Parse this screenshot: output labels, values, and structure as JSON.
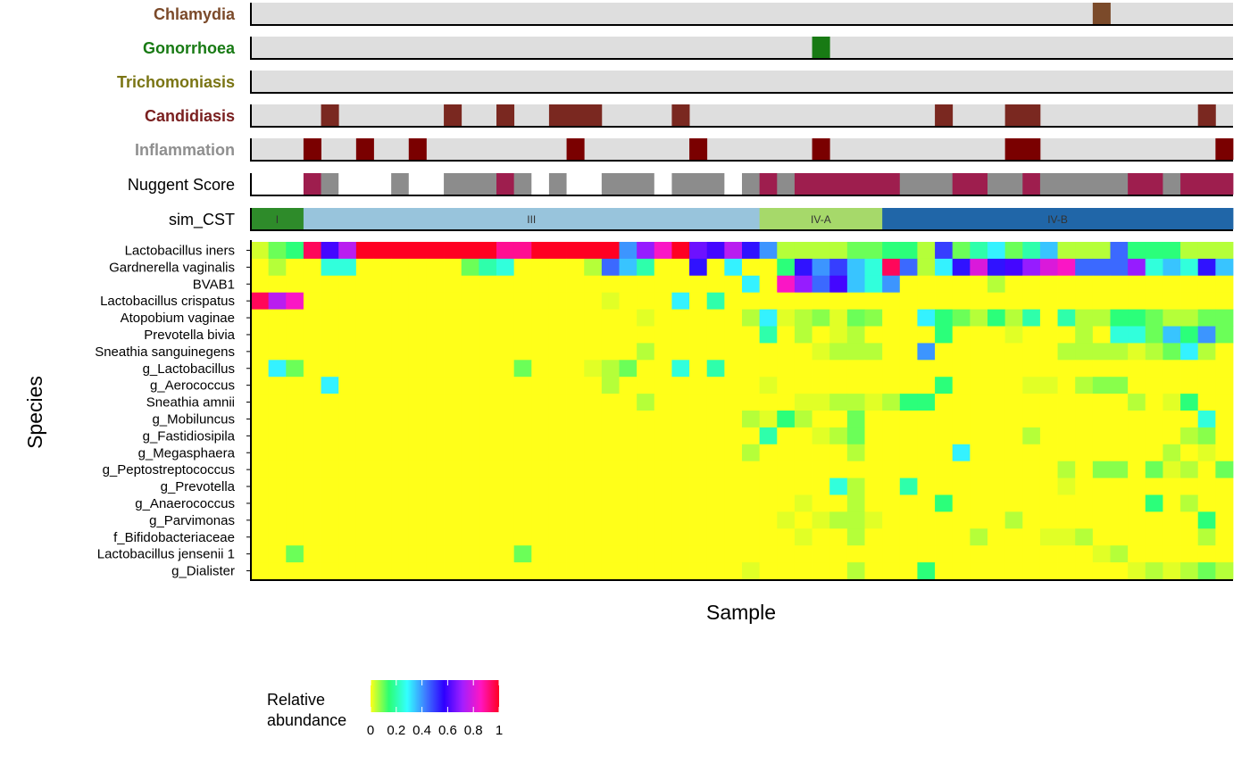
{
  "chart_data": {
    "type": "heatmap",
    "xlabel": "Sample",
    "ylabel": "Species",
    "n_samples": 56,
    "indicator_tracks": [
      {
        "name": "Chlamydia",
        "label_color": "#7b4a2a",
        "on_color": "#7b4a2a",
        "positive": [
          48
        ]
      },
      {
        "name": "Gonorrhoea",
        "label_color": "#187a14",
        "on_color": "#187a14",
        "positive": [
          32
        ]
      },
      {
        "name": "Trichomoniasis",
        "label_color": "#7a7514",
        "on_color": "#7a7514",
        "positive": []
      },
      {
        "name": "Candidiasis",
        "label_color": "#7a2020",
        "on_color": "#7a2820",
        "positive": [
          4,
          11,
          14,
          17,
          18,
          19,
          24,
          39,
          43,
          44,
          54
        ]
      },
      {
        "name": "Inflammation",
        "label_color": "#8f8f8f",
        "on_color": "#7a0000",
        "positive": [
          3,
          6,
          9,
          18,
          25,
          32,
          43,
          44,
          55
        ]
      }
    ],
    "nugent": {
      "name": "Nuggent Score",
      "categories": [
        "low",
        "intermediate",
        "high"
      ],
      "colors": {
        "low": "#ffffff",
        "intermediate": "#8c8c8c",
        "high": "#9e1e4e"
      },
      "values": [
        "low",
        "low",
        "low",
        "high",
        "intermediate",
        "low",
        "low",
        "low",
        "intermediate",
        "low",
        "low",
        "intermediate",
        "intermediate",
        "intermediate",
        "high",
        "intermediate",
        "low",
        "intermediate",
        "low",
        "low",
        "intermediate",
        "intermediate",
        "intermediate",
        "low",
        "intermediate",
        "intermediate",
        "intermediate",
        "low",
        "intermediate",
        "high",
        "intermediate",
        "high",
        "high",
        "high",
        "high",
        "high",
        "high",
        "intermediate",
        "intermediate",
        "intermediate",
        "high",
        "high",
        "intermediate",
        "intermediate",
        "high",
        "intermediate",
        "intermediate",
        "intermediate",
        "intermediate",
        "intermediate",
        "high",
        "high",
        "intermediate",
        "high",
        "high",
        "high"
      ]
    },
    "cst": {
      "name": "sim_CST",
      "segments": [
        {
          "label": "I",
          "start": 0,
          "end": 3,
          "color": "#2e8b2a"
        },
        {
          "label": "III",
          "start": 3,
          "end": 29,
          "color": "#98c4dc"
        },
        {
          "label": "IV-A",
          "start": 29,
          "end": 36,
          "color": "#a6d96a"
        },
        {
          "label": "IV-B",
          "start": 36,
          "end": 56,
          "color": "#2066a8"
        }
      ]
    },
    "species": [
      "Lactobacillus iners",
      "Gardnerella vaginalis",
      "BVAB1",
      "Lactobacillus crispatus",
      "Atopobium vaginae",
      "Prevotella bivia",
      "Sneathia sanguinegens",
      "g_Lactobacillus",
      "g_Aerococcus",
      "Sneathia amnii",
      "g_Mobiluncus",
      "g_Fastidiosipila",
      "g_Megasphaera",
      "g_Peptostreptococcus",
      "g_Prevotella",
      "g_Anaerococcus",
      "g_Parvimonas",
      "f_Bifidobacteriaceae",
      "Lactobacillus jensenii 1",
      "g_Dialister"
    ],
    "abundance": [
      [
        0.03,
        0.1,
        0.15,
        0.95,
        0.6,
        0.75,
        1,
        1,
        1,
        1,
        1,
        1,
        1,
        1,
        0.9,
        0.9,
        1,
        1,
        1,
        1,
        1,
        0.4,
        0.7,
        0.85,
        1,
        0.65,
        0.6,
        0.75,
        0.55,
        0.4,
        0.05,
        0.05,
        0.05,
        0.05,
        0.1,
        0.1,
        0.15,
        0.15,
        0.05,
        0.5,
        0.1,
        0.2,
        0.3,
        0.1,
        0.2,
        0.35,
        0.05,
        0.05,
        0.05,
        0.45,
        0.15,
        0.15,
        0.15,
        0.05,
        0.05,
        0.05
      ],
      [
        0,
        0.05,
        0,
        0,
        0.25,
        0.25,
        0,
        0,
        0,
        0,
        0,
        0,
        0.1,
        0.2,
        0.25,
        0,
        0,
        0,
        0,
        0.05,
        0.45,
        0.35,
        0.2,
        0,
        0,
        0.55,
        0,
        0.3,
        0,
        0,
        0.15,
        0.55,
        0.4,
        0.5,
        0.35,
        0.25,
        0.95,
        0.45,
        0.05,
        0.3,
        0.55,
        0.8,
        0.55,
        0.6,
        0.7,
        0.8,
        0.85,
        0.45,
        0.45,
        0.45,
        0.7,
        0.25,
        0.35,
        0.25,
        0.55,
        0.35
      ],
      [
        0,
        0,
        0,
        0,
        0,
        0,
        0,
        0,
        0,
        0,
        0,
        0,
        0,
        0,
        0,
        0,
        0,
        0,
        0,
        0,
        0,
        0,
        0,
        0,
        0,
        0,
        0,
        0,
        0.3,
        0,
        0.85,
        0.7,
        0.45,
        0.6,
        0.35,
        0.25,
        0.4,
        0,
        0,
        0,
        0,
        0,
        0.05,
        0,
        0,
        0,
        0,
        0,
        0,
        0,
        0,
        0,
        0,
        0,
        0,
        0
      ],
      [
        0.95,
        0.75,
        0.85,
        0,
        0,
        0,
        0,
        0,
        0,
        0,
        0,
        0,
        0,
        0,
        0,
        0,
        0,
        0,
        0,
        0,
        0.02,
        0,
        0,
        0,
        0.3,
        0,
        0.2,
        0,
        0,
        0,
        0,
        0,
        0,
        0,
        0,
        0,
        0,
        0,
        0,
        0,
        0,
        0,
        0,
        0,
        0,
        0,
        0,
        0,
        0,
        0,
        0,
        0,
        0,
        0,
        0,
        0
      ],
      [
        0,
        0,
        0,
        0,
        0,
        0,
        0,
        0,
        0,
        0,
        0,
        0,
        0,
        0,
        0,
        0,
        0,
        0,
        0,
        0,
        0,
        0,
        0.02,
        0,
        0,
        0,
        0,
        0,
        0.05,
        0.3,
        0.02,
        0.05,
        0.08,
        0.02,
        0.1,
        0.08,
        0,
        0,
        0.3,
        0.15,
        0.1,
        0.05,
        0.15,
        0.05,
        0.2,
        0,
        0.2,
        0.05,
        0.05,
        0.15,
        0.15,
        0.1,
        0.05,
        0.05,
        0.1,
        0.1
      ],
      [
        0,
        0,
        0,
        0,
        0,
        0,
        0,
        0,
        0,
        0,
        0,
        0,
        0,
        0,
        0,
        0,
        0,
        0,
        0,
        0,
        0,
        0,
        0,
        0,
        0,
        0,
        0,
        0,
        0,
        0.2,
        0,
        0.05,
        0,
        0.02,
        0.05,
        0,
        0,
        0,
        0,
        0.15,
        0,
        0,
        0,
        0.02,
        0,
        0,
        0,
        0.05,
        0,
        0.25,
        0.25,
        0.1,
        0.35,
        0.15,
        0.4,
        0.1
      ],
      [
        0,
        0,
        0,
        0,
        0,
        0,
        0,
        0,
        0,
        0,
        0,
        0,
        0,
        0,
        0,
        0,
        0,
        0,
        0,
        0,
        0,
        0,
        0.05,
        0,
        0,
        0,
        0,
        0,
        0,
        0,
        0,
        0,
        0.02,
        0.05,
        0.05,
        0.05,
        0,
        0,
        0.4,
        0,
        0,
        0,
        0,
        0,
        0,
        0,
        0.05,
        0.05,
        0.05,
        0.05,
        0.02,
        0.05,
        0.1,
        0.3,
        0.05,
        0
      ],
      [
        0,
        0.3,
        0.1,
        0,
        0,
        0,
        0,
        0,
        0,
        0,
        0,
        0,
        0,
        0,
        0,
        0.1,
        0,
        0,
        0,
        0.02,
        0.05,
        0.1,
        0,
        0,
        0.25,
        0,
        0.2,
        0,
        0,
        0,
        0,
        0,
        0,
        0,
        0,
        0,
        0,
        0,
        0,
        0,
        0,
        0,
        0,
        0,
        0,
        0,
        0,
        0,
        0,
        0,
        0,
        0,
        0,
        0,
        0,
        0
      ],
      [
        0,
        0,
        0,
        0,
        0.3,
        0,
        0,
        0,
        0,
        0,
        0,
        0,
        0,
        0,
        0,
        0,
        0,
        0,
        0,
        0,
        0.05,
        0,
        0,
        0,
        0,
        0,
        0,
        0,
        0,
        0.02,
        0,
        0,
        0,
        0,
        0,
        0,
        0,
        0,
        0,
        0.15,
        0,
        0,
        0,
        0,
        0.02,
        0.02,
        0,
        0.05,
        0.08,
        0.08,
        0,
        0,
        0,
        0,
        0,
        0
      ],
      [
        0,
        0,
        0,
        0,
        0,
        0,
        0,
        0,
        0,
        0,
        0,
        0,
        0,
        0,
        0,
        0,
        0,
        0,
        0,
        0,
        0,
        0,
        0.05,
        0,
        0,
        0,
        0,
        0,
        0,
        0,
        0,
        0.02,
        0.02,
        0.05,
        0.05,
        0.02,
        0.05,
        0.15,
        0.15,
        0,
        0,
        0,
        0,
        0,
        0,
        0,
        0,
        0,
        0,
        0,
        0.05,
        0,
        0.02,
        0.15,
        0,
        0
      ],
      [
        0,
        0,
        0,
        0,
        0,
        0,
        0,
        0,
        0,
        0,
        0,
        0,
        0,
        0,
        0,
        0,
        0,
        0,
        0,
        0,
        0,
        0,
        0,
        0,
        0,
        0,
        0,
        0,
        0.05,
        0.02,
        0.15,
        0.05,
        0,
        0,
        0.1,
        0,
        0,
        0,
        0,
        0,
        0,
        0,
        0,
        0,
        0,
        0,
        0,
        0,
        0,
        0,
        0,
        0,
        0,
        0,
        0.25,
        0
      ],
      [
        0,
        0,
        0,
        0,
        0,
        0,
        0,
        0,
        0,
        0,
        0,
        0,
        0,
        0,
        0,
        0,
        0,
        0,
        0,
        0,
        0,
        0,
        0,
        0,
        0,
        0,
        0,
        0,
        0,
        0.2,
        0,
        0,
        0.02,
        0.05,
        0.1,
        0,
        0,
        0,
        0,
        0,
        0,
        0,
        0,
        0,
        0.05,
        0,
        0,
        0,
        0,
        0,
        0,
        0,
        0,
        0.05,
        0.08,
        0
      ],
      [
        0,
        0,
        0,
        0,
        0,
        0,
        0,
        0,
        0,
        0,
        0,
        0,
        0,
        0,
        0,
        0,
        0,
        0,
        0,
        0,
        0,
        0,
        0,
        0,
        0,
        0,
        0,
        0,
        0.05,
        0,
        0,
        0,
        0,
        0,
        0.05,
        0,
        0,
        0,
        0,
        0,
        0.3,
        0,
        0,
        0,
        0,
        0,
        0,
        0,
        0,
        0,
        0,
        0,
        0.05,
        0,
        0.02,
        0
      ],
      [
        0,
        0,
        0,
        0,
        0,
        0,
        0,
        0,
        0,
        0,
        0,
        0,
        0,
        0,
        0,
        0,
        0,
        0,
        0,
        0,
        0,
        0,
        0,
        0,
        0,
        0,
        0,
        0,
        0,
        0,
        0,
        0,
        0,
        0,
        0,
        0,
        0,
        0,
        0,
        0,
        0,
        0,
        0,
        0,
        0,
        0,
        0.05,
        0,
        0.08,
        0.08,
        0,
        0.1,
        0.02,
        0.05,
        0,
        0.1
      ],
      [
        0,
        0,
        0,
        0,
        0,
        0,
        0,
        0,
        0,
        0,
        0,
        0,
        0,
        0,
        0,
        0,
        0,
        0,
        0,
        0,
        0,
        0,
        0,
        0,
        0,
        0,
        0,
        0,
        0,
        0,
        0,
        0,
        0,
        0.25,
        0.05,
        0,
        0,
        0.2,
        0,
        0,
        0,
        0,
        0,
        0,
        0,
        0,
        0.02,
        0,
        0,
        0,
        0,
        0,
        0,
        0,
        0,
        0
      ],
      [
        0,
        0,
        0,
        0,
        0,
        0,
        0,
        0,
        0,
        0,
        0,
        0,
        0,
        0,
        0,
        0,
        0,
        0,
        0,
        0,
        0,
        0,
        0,
        0,
        0,
        0,
        0,
        0,
        0,
        0,
        0,
        0.02,
        0,
        0,
        0.05,
        0,
        0,
        0,
        0,
        0.15,
        0,
        0,
        0,
        0,
        0,
        0,
        0,
        0,
        0,
        0,
        0,
        0.15,
        0,
        0.05,
        0,
        0
      ],
      [
        0,
        0,
        0,
        0,
        0,
        0,
        0,
        0,
        0,
        0,
        0,
        0,
        0,
        0,
        0,
        0,
        0,
        0,
        0,
        0,
        0,
        0,
        0,
        0,
        0,
        0,
        0,
        0,
        0,
        0,
        0.02,
        0,
        0.02,
        0.05,
        0.05,
        0.02,
        0,
        0,
        0,
        0,
        0,
        0,
        0,
        0.05,
        0,
        0,
        0,
        0,
        0,
        0,
        0,
        0,
        0,
        0,
        0.15,
        0
      ],
      [
        0,
        0,
        0,
        0,
        0,
        0,
        0,
        0,
        0,
        0,
        0,
        0,
        0,
        0,
        0,
        0,
        0,
        0,
        0,
        0,
        0,
        0,
        0,
        0,
        0,
        0,
        0,
        0,
        0,
        0,
        0,
        0.02,
        0,
        0,
        0.05,
        0,
        0,
        0,
        0,
        0,
        0,
        0.05,
        0,
        0,
        0,
        0.02,
        0.02,
        0.05,
        0,
        0,
        0,
        0,
        0,
        0,
        0.05,
        0
      ],
      [
        0,
        0,
        0.1,
        0,
        0,
        0,
        0,
        0,
        0,
        0,
        0,
        0,
        0,
        0,
        0,
        0.1,
        0,
        0,
        0,
        0,
        0,
        0,
        0,
        0,
        0,
        0,
        0,
        0,
        0,
        0,
        0,
        0,
        0,
        0,
        0,
        0,
        0,
        0,
        0,
        0,
        0,
        0,
        0,
        0,
        0,
        0,
        0,
        0,
        0.02,
        0.05,
        0,
        0,
        0,
        0,
        0,
        0
      ],
      [
        0,
        0,
        0,
        0,
        0,
        0,
        0,
        0,
        0,
        0,
        0,
        0,
        0,
        0,
        0,
        0,
        0,
        0,
        0,
        0,
        0,
        0,
        0,
        0,
        0,
        0,
        0,
        0,
        0.02,
        0,
        0,
        0,
        0,
        0,
        0.05,
        0,
        0,
        0,
        0.15,
        0,
        0,
        0,
        0,
        0,
        0,
        0,
        0,
        0,
        0,
        0,
        0.02,
        0.05,
        0.02,
        0.05,
        0.1,
        0.05
      ]
    ],
    "color_scale": {
      "title": "Relative abundance",
      "title_lines": [
        "Relative",
        "abundance"
      ],
      "range": [
        0,
        1
      ],
      "ticks": [
        "0",
        "0.2",
        "0.4",
        "0.6",
        "0.8",
        "1"
      ],
      "gradient": [
        "#ffff19",
        "#2bff73",
        "#33ffff",
        "#3e7bff",
        "#2d00ff",
        "#a21fff",
        "#ff15c2",
        "#ff0022"
      ]
    }
  }
}
